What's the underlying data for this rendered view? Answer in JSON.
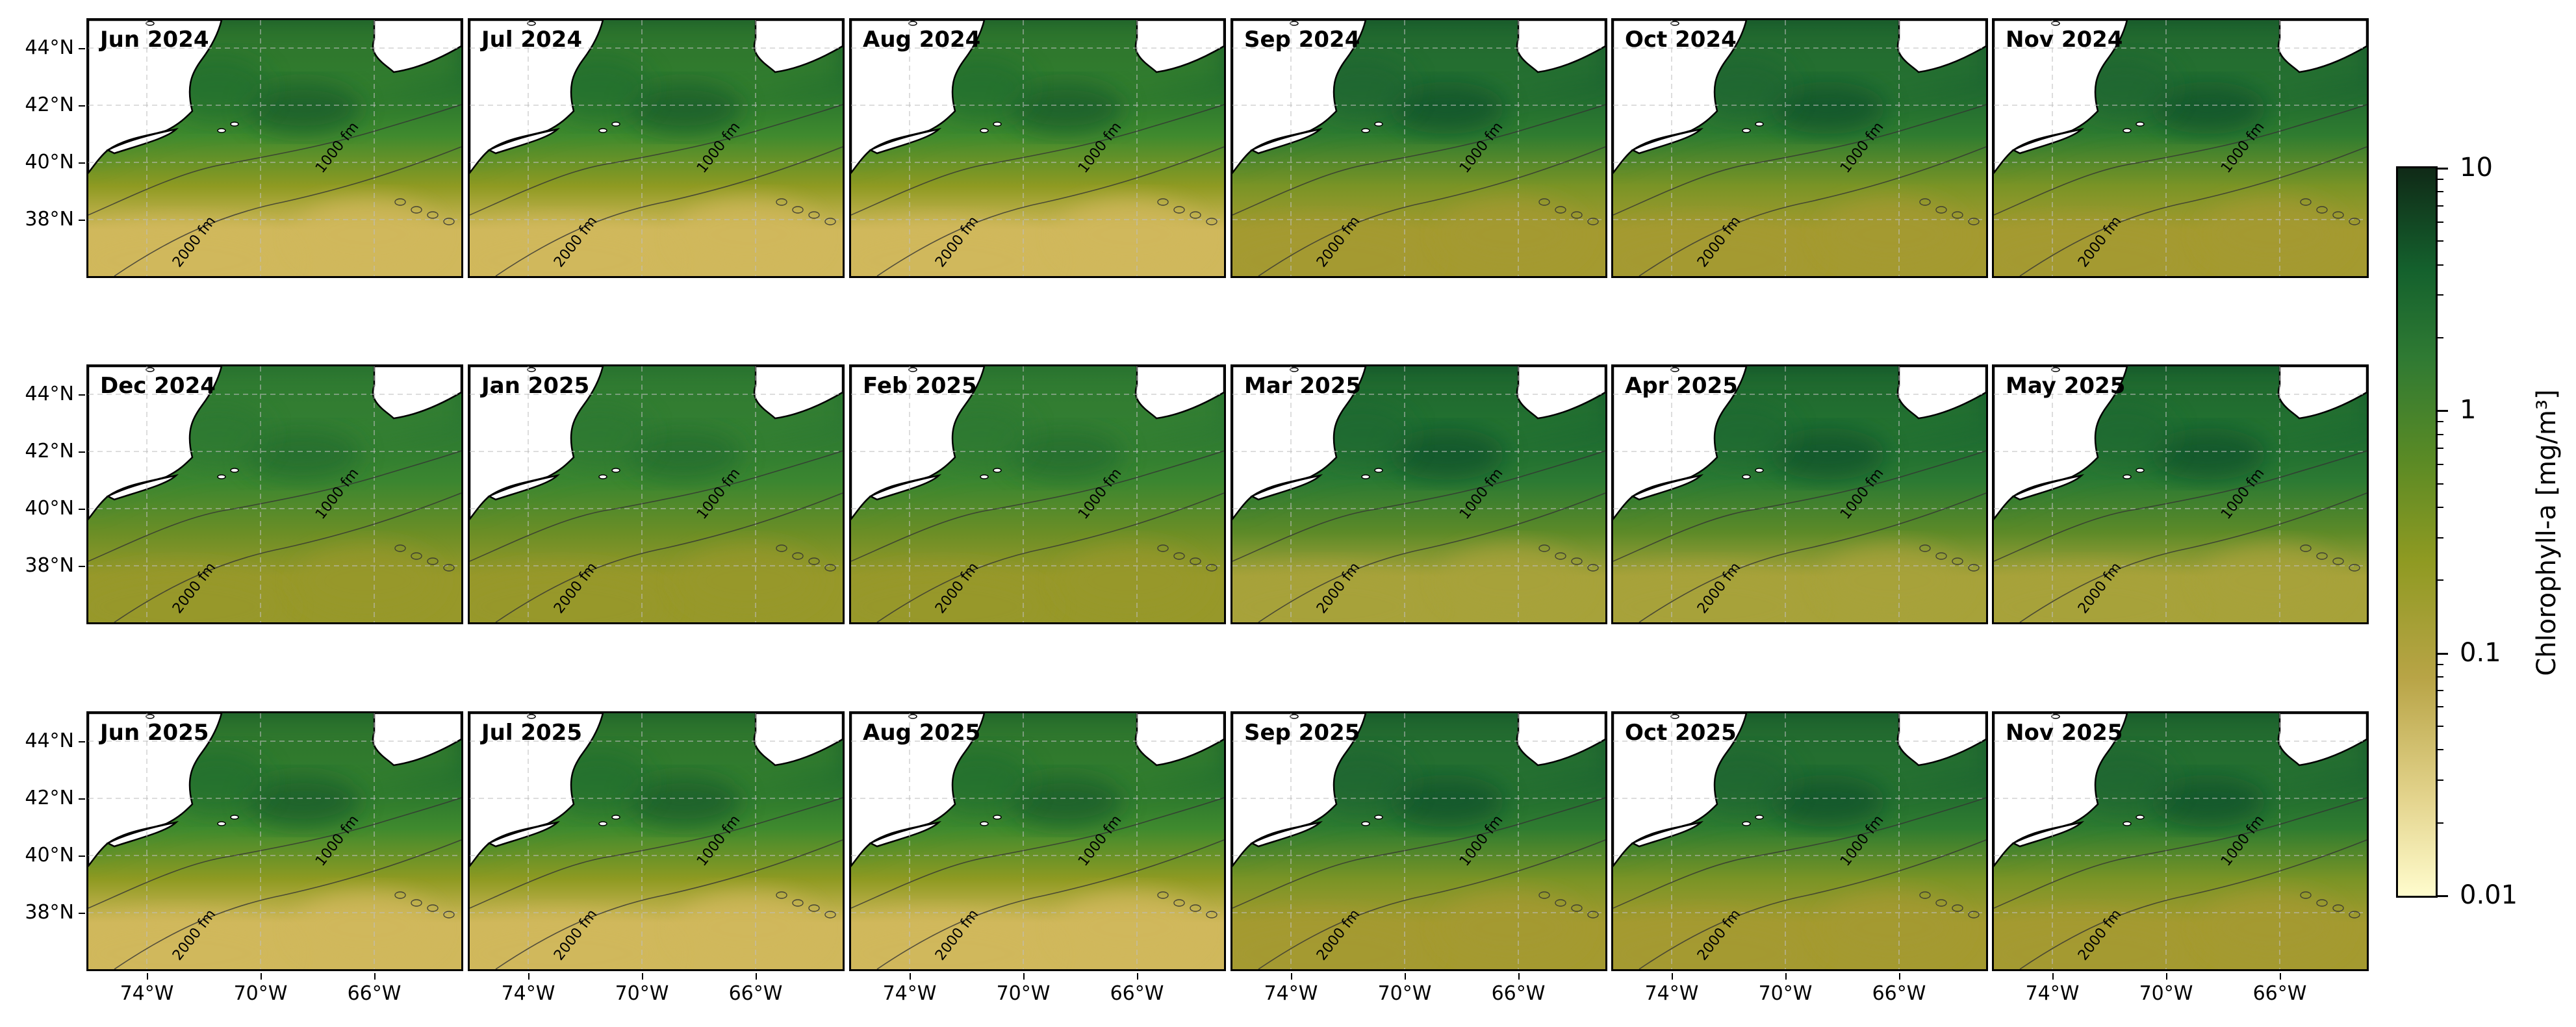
{
  "map": {
    "panels": [
      {
        "title": "Jun 2024",
        "style": "summer"
      },
      {
        "title": "Jul 2024",
        "style": "summer"
      },
      {
        "title": "Aug 2024",
        "style": "summer"
      },
      {
        "title": "Sep 2024",
        "style": "fall"
      },
      {
        "title": "Oct 2024",
        "style": "fall"
      },
      {
        "title": "Nov 2024",
        "style": "fall"
      },
      {
        "title": "Dec 2024",
        "style": "winter"
      },
      {
        "title": "Jan 2025",
        "style": "winter"
      },
      {
        "title": "Feb 2025",
        "style": "winter"
      },
      {
        "title": "Mar 2025",
        "style": "spring"
      },
      {
        "title": "Apr 2025",
        "style": "spring"
      },
      {
        "title": "May 2025",
        "style": "spring"
      },
      {
        "title": "Jun 2025",
        "style": "summer"
      },
      {
        "title": "Jul 2025",
        "style": "summer"
      },
      {
        "title": "Aug 2025",
        "style": "summer"
      },
      {
        "title": "Sep 2025",
        "style": "fall"
      },
      {
        "title": "Oct 2025",
        "style": "fall"
      },
      {
        "title": "Nov 2025",
        "style": "fall"
      }
    ],
    "isobaths": [
      "1000 fm",
      "2000 fm"
    ],
    "lat_ticks": [
      "44°N",
      "42°N",
      "40°N",
      "38°N"
    ],
    "lon_ticks": [
      "74°W",
      "70°W",
      "66°W"
    ],
    "colorbar": {
      "label": "Chlorophyll-a [mg/m³]",
      "scale": "log",
      "ticks": [
        "10",
        "1",
        "0.1",
        "0.01"
      ],
      "range": [
        0.01,
        10
      ],
      "colors": [
        "#fffccd",
        "#e2d28a",
        "#b8a446",
        "#8f9a22",
        "#5a8a25",
        "#2f7a33",
        "#14612d",
        "#102a17"
      ]
    },
    "colors": {
      "land": "#ffffff",
      "coast": "#000000",
      "isobath": "#333333",
      "grid": "#bfbfbf"
    }
  }
}
